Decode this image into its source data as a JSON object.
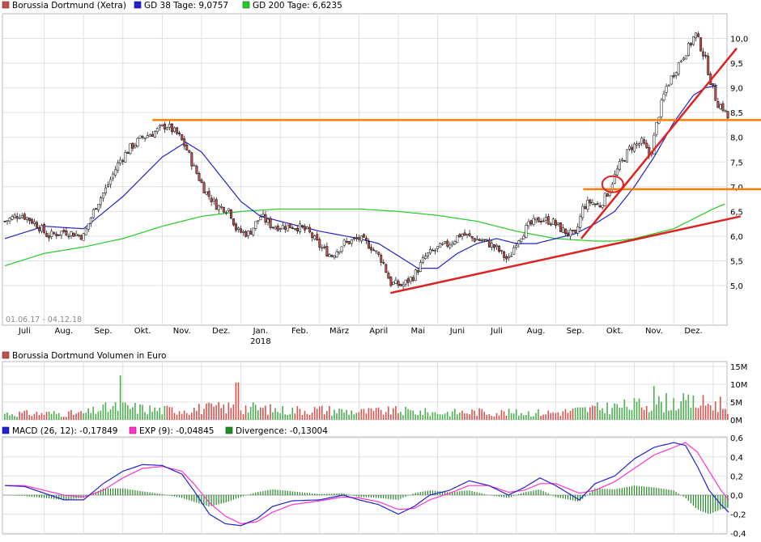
{
  "chart_data": [
    {
      "type": "candlestick",
      "legend": [
        {
          "label": "Borussia Dortmund (Xetra)",
          "color": "#c0504d"
        },
        {
          "label": "GD 38 Tage: 9,0757",
          "color": "#2222cc"
        },
        {
          "label": "GD 200 Tage: 6,6235",
          "color": "#22cc22"
        }
      ],
      "date_range": "01.06.17 - 04.12.18",
      "ylim": [
        4.5,
        10.4
      ],
      "y_ticks": [
        "5,0",
        "5,5",
        "6,0",
        "6,5",
        "7,0",
        "7,5",
        "8,0",
        "8,5",
        "9,0",
        "9,5",
        "10,0"
      ],
      "x_ticks": [
        "Juli",
        "Aug.",
        "Sep.",
        "Okt.",
        "Nov.",
        "Dez.",
        "Jan.",
        "Feb.",
        "März",
        "April",
        "Mai",
        "Juni",
        "Juli",
        "Aug.",
        "Sep.",
        "Okt.",
        "Nov.",
        "Dez."
      ],
      "x_tick_months": [
        1,
        2,
        3,
        4,
        5,
        6,
        7,
        8,
        9,
        10,
        11,
        12,
        13,
        14,
        15,
        16,
        17,
        18
      ],
      "year_label": "2018",
      "year_label_month": 7,
      "price_path": [
        [
          0,
          6.3
        ],
        [
          0.4,
          6.45
        ],
        [
          0.8,
          6.25
        ],
        [
          1.1,
          6.0
        ],
        [
          1.5,
          6.1
        ],
        [
          2.0,
          6.0
        ],
        [
          2.3,
          6.6
        ],
        [
          2.6,
          7.0
        ],
        [
          2.9,
          7.5
        ],
        [
          3.2,
          7.8
        ],
        [
          3.5,
          8.0
        ],
        [
          3.8,
          8.1
        ],
        [
          4.1,
          8.25
        ],
        [
          4.4,
          8.05
        ],
        [
          4.6,
          7.8
        ],
        [
          4.8,
          7.4
        ],
        [
          5.1,
          6.9
        ],
        [
          5.4,
          6.6
        ],
        [
          5.7,
          6.55
        ],
        [
          5.9,
          6.1
        ],
        [
          6.2,
          6.05
        ],
        [
          6.5,
          6.4
        ],
        [
          6.8,
          6.2
        ],
        [
          7.1,
          6.2
        ],
        [
          7.4,
          6.2
        ],
        [
          7.7,
          6.1
        ],
        [
          8.0,
          5.8
        ],
        [
          8.3,
          5.6
        ],
        [
          8.6,
          5.85
        ],
        [
          9.0,
          5.95
        ],
        [
          9.3,
          5.8
        ],
        [
          9.6,
          5.5
        ],
        [
          9.8,
          5.05
        ],
        [
          10.1,
          5.0
        ],
        [
          10.4,
          5.2
        ],
        [
          10.7,
          5.6
        ],
        [
          11.0,
          5.75
        ],
        [
          11.3,
          5.85
        ],
        [
          11.6,
          6.05
        ],
        [
          11.9,
          5.95
        ],
        [
          12.2,
          5.9
        ],
        [
          12.5,
          5.75
        ],
        [
          12.8,
          5.5
        ],
        [
          13.0,
          5.9
        ],
        [
          13.3,
          6.2
        ],
        [
          13.6,
          6.35
        ],
        [
          13.9,
          6.3
        ],
        [
          14.2,
          6.1
        ],
        [
          14.5,
          6.0
        ],
        [
          14.7,
          6.6
        ],
        [
          14.9,
          6.7
        ],
        [
          15.1,
          6.6
        ],
        [
          15.3,
          6.85
        ],
        [
          15.6,
          7.4
        ],
        [
          15.9,
          7.8
        ],
        [
          16.2,
          7.9
        ],
        [
          16.4,
          7.6
        ],
        [
          16.6,
          8.4
        ],
        [
          16.8,
          9.0
        ],
        [
          17.0,
          9.3
        ],
        [
          17.2,
          9.6
        ],
        [
          17.4,
          9.85
        ],
        [
          17.55,
          10.1
        ],
        [
          17.65,
          9.9
        ],
        [
          17.8,
          9.6
        ],
        [
          17.95,
          9.1
        ],
        [
          18.1,
          8.7
        ],
        [
          18.25,
          8.6
        ],
        [
          18.4,
          8.35
        ]
      ],
      "gd38": [
        [
          0,
          5.95
        ],
        [
          1.0,
          6.2
        ],
        [
          2.0,
          6.15
        ],
        [
          3.0,
          6.8
        ],
        [
          4.0,
          7.6
        ],
        [
          4.6,
          7.9
        ],
        [
          5.0,
          7.7
        ],
        [
          5.5,
          7.2
        ],
        [
          6.0,
          6.7
        ],
        [
          6.5,
          6.4
        ],
        [
          7.0,
          6.3
        ],
        [
          8.0,
          6.1
        ],
        [
          9.0,
          5.95
        ],
        [
          9.5,
          5.85
        ],
        [
          10.0,
          5.6
        ],
        [
          10.5,
          5.35
        ],
        [
          11.0,
          5.35
        ],
        [
          11.5,
          5.65
        ],
        [
          12.0,
          5.85
        ],
        [
          12.5,
          5.95
        ],
        [
          13.0,
          5.85
        ],
        [
          13.5,
          5.85
        ],
        [
          14.0,
          5.95
        ],
        [
          14.5,
          6.05
        ],
        [
          15.0,
          6.25
        ],
        [
          15.5,
          6.5
        ],
        [
          16.0,
          7.0
        ],
        [
          16.5,
          7.6
        ],
        [
          17.0,
          8.3
        ],
        [
          17.5,
          8.85
        ],
        [
          17.8,
          9.0
        ],
        [
          18.1,
          9.05
        ]
      ],
      "gd200": [
        [
          0,
          5.4
        ],
        [
          1.0,
          5.65
        ],
        [
          2.0,
          5.78
        ],
        [
          3.0,
          5.95
        ],
        [
          4.0,
          6.2
        ],
        [
          5.0,
          6.4
        ],
        [
          6.0,
          6.5
        ],
        [
          7.0,
          6.55
        ],
        [
          8.0,
          6.55
        ],
        [
          9.0,
          6.55
        ],
        [
          10.0,
          6.5
        ],
        [
          11.0,
          6.42
        ],
        [
          12.0,
          6.3
        ],
        [
          13.0,
          6.1
        ],
        [
          14.0,
          5.95
        ],
        [
          15.0,
          5.9
        ],
        [
          15.5,
          5.9
        ],
        [
          16.0,
          5.95
        ],
        [
          16.5,
          6.05
        ],
        [
          17.0,
          6.15
        ],
        [
          17.5,
          6.35
        ],
        [
          18.0,
          6.55
        ],
        [
          18.3,
          6.65
        ]
      ],
      "annotations": [
        {
          "kind": "hline",
          "y": 8.35,
          "color": "#ff8000"
        },
        {
          "kind": "hline_partial",
          "y": 6.95,
          "x_from": 14.7,
          "color": "#ff8000"
        },
        {
          "kind": "trend",
          "from": [
            9.8,
            4.85
          ],
          "to": [
            18.7,
            6.4
          ],
          "color": "#dd2222"
        },
        {
          "kind": "trend",
          "from": [
            14.65,
            5.95
          ],
          "to": [
            18.6,
            9.8
          ],
          "color": "#dd2222"
        },
        {
          "kind": "circle",
          "center": [
            15.45,
            7.05
          ],
          "color": "#dd2222"
        }
      ]
    },
    {
      "type": "bar",
      "title": "Borussia Dortmund Volumen in Euro",
      "legend_color": "#c0504d",
      "up_color": "#4caf50",
      "down_color": "#d9534f",
      "ylim": [
        0,
        15
      ],
      "y_ticks": [
        "0M",
        "5M",
        "10M",
        "15M"
      ],
      "y_tick_values": [
        0,
        5,
        10,
        15
      ],
      "volume_profile": [
        [
          0,
          2.0
        ],
        [
          2.0,
          2.0
        ],
        [
          2.5,
          3.5
        ],
        [
          3.0,
          4.0
        ],
        [
          4.0,
          3.0
        ],
        [
          5.0,
          3.5
        ],
        [
          6.0,
          4.0
        ],
        [
          7.0,
          3.0
        ],
        [
          8.0,
          3.2
        ],
        [
          9.0,
          2.5
        ],
        [
          10.0,
          2.8
        ],
        [
          11.0,
          2.2
        ],
        [
          12.0,
          2.5
        ],
        [
          13.0,
          2.2
        ],
        [
          14.0,
          2.3
        ],
        [
          15.0,
          3.5
        ],
        [
          16.0,
          4.5
        ],
        [
          17.0,
          5.5
        ],
        [
          18.0,
          5.0
        ],
        [
          18.4,
          4.0
        ]
      ],
      "spikes": [
        [
          2.95,
          12.5
        ],
        [
          5.9,
          10.5
        ],
        [
          16.5,
          9.5
        ],
        [
          16.8,
          7.5
        ],
        [
          18.2,
          6.5
        ]
      ]
    },
    {
      "type": "line",
      "legend": [
        {
          "label": "MACD (26, 12): -0,17849",
          "color": "#2222cc"
        },
        {
          "label": "EXP (9): -0,04845",
          "color": "#ff33cc"
        },
        {
          "label": "Divergence: -0,13004",
          "color": "#228822"
        }
      ],
      "ylim": [
        -0.4,
        0.6
      ],
      "y_ticks": [
        "-0,4",
        "-0,2",
        "0,0",
        "0,2",
        "0,4",
        "0,6"
      ],
      "y_tick_values": [
        -0.4,
        -0.2,
        0.0,
        0.2,
        0.4,
        0.6
      ],
      "macd": [
        [
          0,
          0.1
        ],
        [
          0.5,
          0.09
        ],
        [
          1.0,
          0.02
        ],
        [
          1.5,
          -0.05
        ],
        [
          2.0,
          -0.05
        ],
        [
          2.5,
          0.12
        ],
        [
          3.0,
          0.25
        ],
        [
          3.5,
          0.32
        ],
        [
          4.0,
          0.31
        ],
        [
          4.5,
          0.22
        ],
        [
          4.8,
          0.05
        ],
        [
          5.2,
          -0.2
        ],
        [
          5.6,
          -0.3
        ],
        [
          6.0,
          -0.32
        ],
        [
          6.4,
          -0.25
        ],
        [
          6.8,
          -0.12
        ],
        [
          7.3,
          -0.06
        ],
        [
          8.0,
          -0.05
        ],
        [
          8.6,
          0.0
        ],
        [
          9.0,
          -0.05
        ],
        [
          9.5,
          -0.1
        ],
        [
          10.0,
          -0.2
        ],
        [
          10.4,
          -0.12
        ],
        [
          10.8,
          0.0
        ],
        [
          11.3,
          0.05
        ],
        [
          11.8,
          0.15
        ],
        [
          12.3,
          0.1
        ],
        [
          12.8,
          0.0
        ],
        [
          13.2,
          0.08
        ],
        [
          13.6,
          0.18
        ],
        [
          14.0,
          0.1
        ],
        [
          14.6,
          -0.05
        ],
        [
          15.0,
          0.12
        ],
        [
          15.5,
          0.2
        ],
        [
          16.0,
          0.38
        ],
        [
          16.5,
          0.5
        ],
        [
          17.0,
          0.55
        ],
        [
          17.3,
          0.52
        ],
        [
          17.6,
          0.3
        ],
        [
          17.9,
          0.05
        ],
        [
          18.2,
          -0.1
        ],
        [
          18.4,
          -0.18
        ]
      ],
      "exp": [
        [
          0,
          0.1
        ],
        [
          0.5,
          0.1
        ],
        [
          1.0,
          0.05
        ],
        [
          1.5,
          0.0
        ],
        [
          2.0,
          -0.02
        ],
        [
          2.5,
          0.05
        ],
        [
          3.0,
          0.18
        ],
        [
          3.5,
          0.28
        ],
        [
          4.0,
          0.3
        ],
        [
          4.5,
          0.25
        ],
        [
          4.8,
          0.12
        ],
        [
          5.2,
          -0.08
        ],
        [
          5.6,
          -0.22
        ],
        [
          6.0,
          -0.3
        ],
        [
          6.4,
          -0.28
        ],
        [
          6.8,
          -0.18
        ],
        [
          7.3,
          -0.1
        ],
        [
          8.0,
          -0.06
        ],
        [
          8.6,
          -0.02
        ],
        [
          9.0,
          -0.03
        ],
        [
          9.5,
          -0.07
        ],
        [
          10.0,
          -0.15
        ],
        [
          10.4,
          -0.14
        ],
        [
          10.8,
          -0.05
        ],
        [
          11.3,
          0.02
        ],
        [
          11.8,
          0.1
        ],
        [
          12.3,
          0.1
        ],
        [
          12.8,
          0.03
        ],
        [
          13.2,
          0.05
        ],
        [
          13.6,
          0.12
        ],
        [
          14.0,
          0.12
        ],
        [
          14.6,
          0.02
        ],
        [
          15.0,
          0.05
        ],
        [
          15.5,
          0.14
        ],
        [
          16.0,
          0.28
        ],
        [
          16.5,
          0.42
        ],
        [
          17.0,
          0.5
        ],
        [
          17.3,
          0.55
        ],
        [
          17.6,
          0.45
        ],
        [
          17.9,
          0.25
        ],
        [
          18.2,
          0.05
        ],
        [
          18.4,
          -0.05
        ]
      ]
    }
  ]
}
